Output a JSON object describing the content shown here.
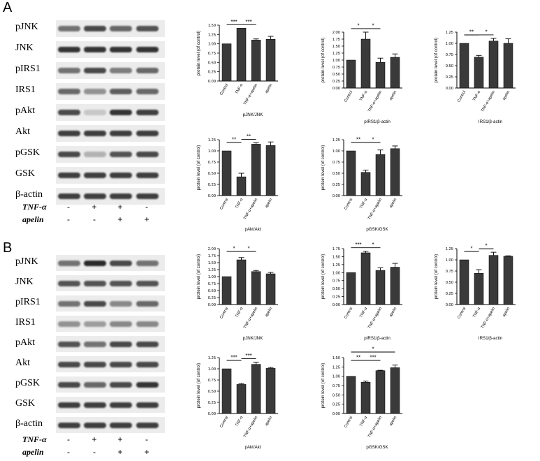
{
  "panels": [
    {
      "letter": "A",
      "blots": [
        {
          "label": "pJNK",
          "intensities": [
            0.55,
            0.75,
            0.6,
            0.7
          ]
        },
        {
          "label": "JNK",
          "intensities": [
            0.85,
            0.85,
            0.85,
            0.85
          ]
        },
        {
          "label": "pIRS1",
          "intensities": [
            0.55,
            0.75,
            0.5,
            0.6
          ]
        },
        {
          "label": "IRS1",
          "intensities": [
            0.6,
            0.4,
            0.65,
            0.6
          ]
        },
        {
          "label": "pAkt",
          "intensities": [
            0.75,
            0.15,
            0.85,
            0.8
          ]
        },
        {
          "label": "Akt",
          "intensities": [
            0.8,
            0.8,
            0.8,
            0.8
          ]
        },
        {
          "label": "pGSK",
          "intensities": [
            0.75,
            0.25,
            0.7,
            0.75
          ]
        },
        {
          "label": "GSK",
          "intensities": [
            0.8,
            0.8,
            0.8,
            0.8
          ]
        },
        {
          "label": "β-actin",
          "intensities": [
            0.8,
            0.8,
            0.8,
            0.8
          ]
        }
      ],
      "treatments": [
        {
          "label": "TNF-α",
          "signs": [
            "-",
            "+",
            "+",
            "-"
          ]
        },
        {
          "label": "apelin",
          "signs": [
            "-",
            "-",
            "+",
            "+"
          ]
        }
      ]
    },
    {
      "letter": "B",
      "blots": [
        {
          "label": "pJNK",
          "intensities": [
            0.55,
            0.9,
            0.75,
            0.55
          ]
        },
        {
          "label": "JNK",
          "intensities": [
            0.7,
            0.7,
            0.7,
            0.7
          ]
        },
        {
          "label": "pIRS1",
          "intensities": [
            0.55,
            0.75,
            0.45,
            0.6
          ]
        },
        {
          "label": "IRS1",
          "intensities": [
            0.4,
            0.35,
            0.45,
            0.45
          ]
        },
        {
          "label": "pAkt",
          "intensities": [
            0.7,
            0.55,
            0.75,
            0.75
          ]
        },
        {
          "label": "Akt",
          "intensities": [
            0.75,
            0.75,
            0.75,
            0.75
          ]
        },
        {
          "label": "pGSK",
          "intensities": [
            0.75,
            0.6,
            0.75,
            0.85
          ]
        },
        {
          "label": "GSK",
          "intensities": [
            0.8,
            0.8,
            0.8,
            0.8
          ]
        },
        {
          "label": "β-actin",
          "intensities": [
            0.8,
            0.8,
            0.8,
            0.8
          ]
        }
      ],
      "treatments": [
        {
          "label": "TNF-α",
          "signs": [
            "-",
            "+",
            "+",
            "-"
          ]
        },
        {
          "label": "apelin",
          "signs": [
            "-",
            "-",
            "+",
            "+"
          ]
        }
      ]
    }
  ],
  "chart_data": [
    {
      "id": "A1",
      "type": "bar",
      "title": "pJNK/JNK",
      "ylabel": "protein level (of control)",
      "categories": [
        "Control",
        "TNF-α",
        "TNF-α+apelin",
        "apelin"
      ],
      "values": [
        1.0,
        1.42,
        1.1,
        1.12
      ],
      "errors": [
        0,
        0,
        0.03,
        0.08
      ],
      "ylim": [
        0,
        1.5
      ],
      "yticks": [
        "0.00",
        "0.25",
        "0.50",
        "0.75",
        "1.00",
        "1.25",
        "1.50"
      ],
      "brackets": [
        {
          "from": 0,
          "to": 1,
          "label": "***"
        },
        {
          "from": 1,
          "to": 2,
          "label": "***"
        }
      ]
    },
    {
      "id": "A2",
      "type": "bar",
      "title": "pIRS1/β-actin",
      "ylabel": "protein level (of control)",
      "categories": [
        "Control",
        "TNF-α",
        "TNF-α+apelin",
        "apelin"
      ],
      "values": [
        1.0,
        1.75,
        0.92,
        1.1
      ],
      "errors": [
        0,
        0.25,
        0.15,
        0.12
      ],
      "ylim": [
        0,
        2.0
      ],
      "yticks": [
        "0.00",
        "0.25",
        "0.50",
        "0.75",
        "1.00",
        "1.25",
        "1.50",
        "1.75",
        "2.00"
      ],
      "brackets": [
        {
          "from": 0,
          "to": 1,
          "label": "*"
        },
        {
          "from": 1,
          "to": 2,
          "label": "*"
        }
      ]
    },
    {
      "id": "A3",
      "type": "bar",
      "title": "IRS1/β-actin",
      "ylabel": "protein level (of control)",
      "categories": [
        "Control",
        "TNF-α",
        "TNF-α+apelin",
        "apelin"
      ],
      "values": [
        1.0,
        0.69,
        1.05,
        1.0
      ],
      "errors": [
        0,
        0.04,
        0.06,
        0.1
      ],
      "ylim": [
        0,
        1.25
      ],
      "yticks": [
        "0.00",
        "0.25",
        "0.50",
        "0.75",
        "1.00",
        "1.25"
      ],
      "brackets": [
        {
          "from": 0,
          "to": 1,
          "label": "**"
        },
        {
          "from": 1,
          "to": 2,
          "label": "*"
        }
      ]
    },
    {
      "id": "A4",
      "type": "bar",
      "title": "pAkt/Akt",
      "ylabel": "protein level (of control)",
      "categories": [
        "Control",
        "TNF-α",
        "TNF-α+apelin",
        "apelin"
      ],
      "values": [
        1.0,
        0.42,
        1.15,
        1.12
      ],
      "errors": [
        0,
        0.08,
        0.03,
        0.08
      ],
      "ylim": [
        0,
        1.25
      ],
      "yticks": [
        "0.00",
        "0.25",
        "0.50",
        "0.75",
        "1.00",
        "1.25"
      ],
      "brackets": [
        {
          "from": 0,
          "to": 1,
          "label": "**"
        },
        {
          "from": 1,
          "to": 2,
          "label": "**"
        }
      ]
    },
    {
      "id": "A5",
      "type": "bar",
      "title": "pGSK/GSK",
      "ylabel": "protein level (of control)",
      "categories": [
        "Control",
        "TNF-α",
        "TNF-α+apelin",
        "apelin"
      ],
      "values": [
        1.0,
        0.52,
        0.92,
        1.05
      ],
      "errors": [
        0,
        0.05,
        0.1,
        0.06
      ],
      "ylim": [
        0,
        1.25
      ],
      "yticks": [
        "0.00",
        "0.25",
        "0.50",
        "0.75",
        "1.00",
        "1.25"
      ],
      "brackets": [
        {
          "from": 0,
          "to": 1,
          "label": "**"
        },
        {
          "from": 1,
          "to": 2,
          "label": "*"
        }
      ]
    },
    {
      "id": "B1",
      "type": "bar",
      "title": "pJNK/JNK",
      "ylabel": "protein level (of control)",
      "categories": [
        "Control",
        "TNF-α",
        "TNF-α+apelin",
        "apelin"
      ],
      "values": [
        1.0,
        1.6,
        1.18,
        1.1
      ],
      "errors": [
        0,
        0.08,
        0.04,
        0.05
      ],
      "ylim": [
        0,
        2.0
      ],
      "yticks": [
        "0.00",
        "0.25",
        "0.50",
        "0.75",
        "1.00",
        "1.25",
        "1.50",
        "1.75",
        "2.00"
      ],
      "brackets": [
        {
          "from": 0,
          "to": 1,
          "label": "*"
        },
        {
          "from": 1,
          "to": 2,
          "label": "*"
        }
      ]
    },
    {
      "id": "B2",
      "type": "bar",
      "title": "pIRS1/β-actin",
      "ylabel": "protein level (of control)",
      "categories": [
        "Control",
        "TNF-α",
        "TNF-α+apelin",
        "apelin"
      ],
      "values": [
        1.0,
        1.62,
        1.07,
        1.17
      ],
      "errors": [
        0,
        0.05,
        0.08,
        0.12
      ],
      "ylim": [
        0,
        1.75
      ],
      "yticks": [
        "0.00",
        "0.25",
        "0.50",
        "0.75",
        "1.00",
        "1.25",
        "1.50",
        "1.75"
      ],
      "brackets": [
        {
          "from": 0,
          "to": 1,
          "label": "***"
        },
        {
          "from": 1,
          "to": 2,
          "label": "*"
        }
      ]
    },
    {
      "id": "B3",
      "type": "bar",
      "title": "IRS1/β-actin",
      "ylabel": "protein level (of control)",
      "categories": [
        "Control",
        "TNF-α",
        "TNF-α+apelin",
        "apelin"
      ],
      "values": [
        1.0,
        0.7,
        1.1,
        1.08
      ],
      "errors": [
        0,
        0.08,
        0.07,
        0.01
      ],
      "ylim": [
        0,
        1.25
      ],
      "yticks": [
        "0.00",
        "0.25",
        "0.50",
        "0.75",
        "1.00",
        "1.25"
      ],
      "brackets": [
        {
          "from": 0,
          "to": 1,
          "label": "*"
        },
        {
          "from": 1,
          "to": 2,
          "label": "*"
        }
      ]
    },
    {
      "id": "B4",
      "type": "bar",
      "title": "pAkt/Akt",
      "ylabel": "protein level (of control)",
      "categories": [
        "Control",
        "TNF-α",
        "TNF-α+apelin",
        "apelin"
      ],
      "values": [
        1.0,
        0.65,
        1.1,
        1.01
      ],
      "errors": [
        0,
        0.02,
        0.05,
        0.02
      ],
      "ylim": [
        0,
        1.25
      ],
      "yticks": [
        "0.00",
        "0.25",
        "0.50",
        "0.75",
        "1.00",
        "1.25"
      ],
      "brackets": [
        {
          "from": 0,
          "to": 1,
          "label": "***"
        },
        {
          "from": 1,
          "to": 2,
          "label": "***"
        }
      ]
    },
    {
      "id": "B5",
      "type": "bar",
      "title": "pGSK/GSK",
      "ylabel": "protein level (of control)",
      "categories": [
        "Control",
        "TNF-α",
        "TNF-α+apelin",
        "apelin"
      ],
      "values": [
        1.0,
        0.84,
        1.15,
        1.23
      ],
      "errors": [
        0,
        0.03,
        0.01,
        0.07
      ],
      "ylim": [
        0,
        1.5
      ],
      "yticks": [
        "0.00",
        "0.25",
        "0.50",
        "0.75",
        "1.00",
        "1.25",
        "1.50"
      ],
      "brackets": [
        {
          "from": 0,
          "to": 1,
          "label": "**"
        },
        {
          "from": 1,
          "to": 2,
          "label": "***"
        },
        {
          "from": 0,
          "to": 3,
          "label": "*"
        }
      ]
    }
  ]
}
